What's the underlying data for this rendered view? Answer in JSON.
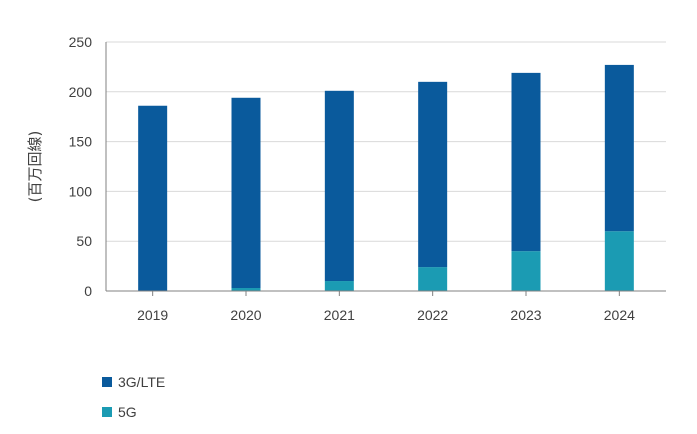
{
  "chart_data": {
    "type": "bar",
    "stacked": true,
    "categories": [
      "2019",
      "2020",
      "2021",
      "2022",
      "2023",
      "2024"
    ],
    "series": [
      {
        "name": "5G",
        "color": "#1b9bb3",
        "values": [
          0,
          3,
          10,
          24,
          40,
          60
        ]
      },
      {
        "name": "3G/LTE",
        "color": "#0a5a9c",
        "values": [
          186,
          191,
          191,
          186,
          179,
          167
        ]
      }
    ],
    "totals": [
      186,
      194,
      201,
      210,
      219,
      227
    ],
    "ylabel": "(百万回線)",
    "ylim": [
      0,
      250
    ],
    "yticks": [
      0,
      50,
      100,
      150,
      200,
      250
    ],
    "grid": true,
    "legend_position": "bottom-left",
    "legend_order": [
      "3G/LTE",
      "5G"
    ]
  }
}
